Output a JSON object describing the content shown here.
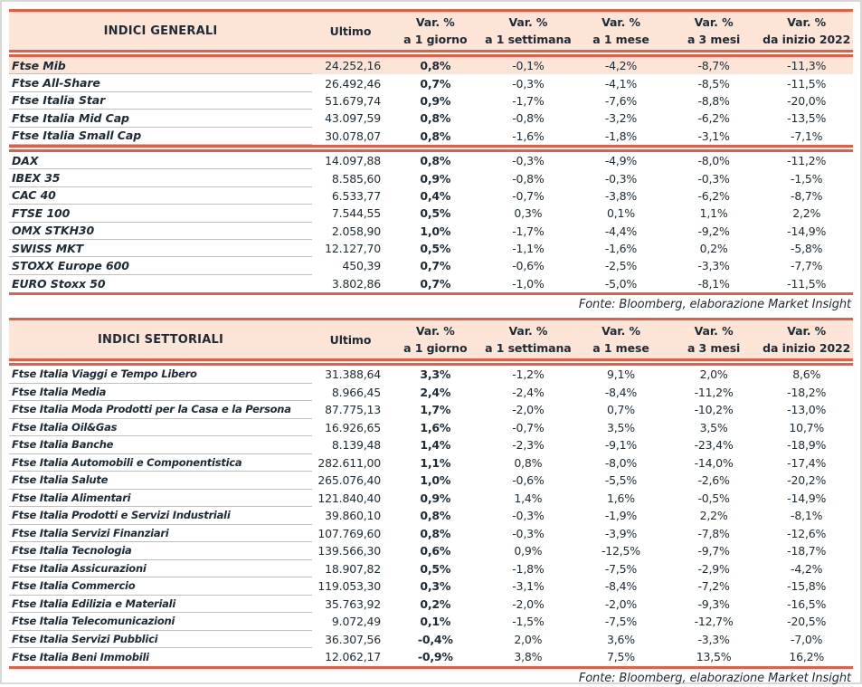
{
  "colors": {
    "accent_red": "#e65c44",
    "header_bg": "#fce4d6",
    "text": "#1c2b36"
  },
  "tables": [
    {
      "title": "INDICI GENERALI",
      "ultimo_header": "Ultimo",
      "var_cols": [
        {
          "line1": "Var. %",
          "line2": "a 1 giorno"
        },
        {
          "line1": "Var. %",
          "line2": "a 1 settimana"
        },
        {
          "line1": "Var. %",
          "line2": "a 1 mese"
        },
        {
          "line1": "Var. %",
          "line2": "a 3 mesi"
        },
        {
          "line1": "Var. %",
          "line2": "da inizio 2022"
        }
      ],
      "sections": [
        {
          "rows": [
            {
              "label": "Ftse Mib",
              "ultimo": "24.252,16",
              "vars": [
                "0,8%",
                "-0,1%",
                "-4,2%",
                "-8,7%",
                "-11,3%"
              ],
              "highlight": true
            },
            {
              "label": "Ftse All-Share",
              "ultimo": "26.492,46",
              "vars": [
                "0,7%",
                "-0,3%",
                "-4,1%",
                "-8,5%",
                "-11,5%"
              ]
            },
            {
              "label": "Ftse Italia Star",
              "ultimo": "51.679,74",
              "vars": [
                "0,9%",
                "-1,7%",
                "-7,6%",
                "-8,8%",
                "-20,0%"
              ]
            },
            {
              "label": "Ftse Italia Mid Cap",
              "ultimo": "43.097,59",
              "vars": [
                "0,8%",
                "-0,8%",
                "-3,2%",
                "-6,2%",
                "-13,5%"
              ]
            },
            {
              "label": "Ftse Italia Small Cap",
              "ultimo": "30.078,07",
              "vars": [
                "0,8%",
                "-1,6%",
                "-1,8%",
                "-3,1%",
                "-7,1%"
              ]
            }
          ]
        },
        {
          "rows": [
            {
              "label": "DAX",
              "ultimo": "14.097,88",
              "vars": [
                "0,8%",
                "-0,3%",
                "-4,9%",
                "-8,0%",
                "-11,2%"
              ]
            },
            {
              "label": "IBEX 35",
              "ultimo": "8.585,60",
              "vars": [
                "0,9%",
                "-0,8%",
                "-0,3%",
                "-0,3%",
                "-1,5%"
              ]
            },
            {
              "label": "CAC 40",
              "ultimo": "6.533,77",
              "vars": [
                "0,4%",
                "-0,7%",
                "-3,8%",
                "-6,2%",
                "-8,7%"
              ]
            },
            {
              "label": "FTSE 100",
              "ultimo": "7.544,55",
              "vars": [
                "0,5%",
                "0,3%",
                "0,1%",
                "1,1%",
                "2,2%"
              ]
            },
            {
              "label": "OMX STKH30",
              "ultimo": "2.058,90",
              "vars": [
                "1,0%",
                "-1,7%",
                "-4,4%",
                "-9,2%",
                "-14,9%"
              ]
            },
            {
              "label": "SWISS MKT",
              "ultimo": "12.127,70",
              "vars": [
                "0,5%",
                "-1,1%",
                "-1,6%",
                "0,2%",
                "-5,8%"
              ]
            },
            {
              "label": "STOXX Europe 600",
              "ultimo": "450,39",
              "vars": [
                "0,7%",
                "-0,6%",
                "-2,5%",
                "-3,3%",
                "-7,7%"
              ]
            },
            {
              "label": "EURO Stoxx 50",
              "ultimo": "3.802,86",
              "vars": [
                "0,7%",
                "-1,0%",
                "-5,0%",
                "-8,1%",
                "-11,5%"
              ]
            }
          ]
        }
      ],
      "fonte": "Fonte: Bloomberg, elaborazione Market Insight"
    },
    {
      "title": "INDICI SETTORIALI",
      "ultimo_header": "Ultimo",
      "var_cols": [
        {
          "line1": "Var. %",
          "line2": "a 1 giorno"
        },
        {
          "line1": "Var. %",
          "line2": "a 1 settimana"
        },
        {
          "line1": "Var. %",
          "line2": "a 1 mese"
        },
        {
          "line1": "Var. %",
          "line2": "a 3 mesi"
        },
        {
          "line1": "Var. %",
          "line2": "da inizio 2022"
        }
      ],
      "sections": [
        {
          "rows": [
            {
              "label": "Ftse Italia Viaggi e Tempo Libero",
              "ultimo": "31.388,64",
              "vars": [
                "3,3%",
                "-1,2%",
                "9,1%",
                "2,0%",
                "8,6%"
              ]
            },
            {
              "label": "Ftse Italia Media",
              "ultimo": "8.966,45",
              "vars": [
                "2,4%",
                "-2,4%",
                "-8,4%",
                "-11,2%",
                "-18,2%"
              ]
            },
            {
              "label": "Ftse Italia Moda Prodotti per la Casa e la Persona",
              "ultimo": "87.775,13",
              "vars": [
                "1,7%",
                "-2,0%",
                "0,7%",
                "-10,2%",
                "-13,0%"
              ]
            },
            {
              "label": "Ftse Italia Oil&Gas",
              "ultimo": "16.926,65",
              "vars": [
                "1,6%",
                "-0,7%",
                "3,5%",
                "3,5%",
                "10,7%"
              ]
            },
            {
              "label": "Ftse Italia Banche",
              "ultimo": "8.139,48",
              "vars": [
                "1,4%",
                "-2,3%",
                "-9,1%",
                "-23,4%",
                "-18,9%"
              ]
            },
            {
              "label": "Ftse Italia Automobili e Componentistica",
              "ultimo": "282.611,00",
              "vars": [
                "1,1%",
                "0,8%",
                "-8,0%",
                "-14,0%",
                "-17,4%"
              ]
            },
            {
              "label": "Ftse Italia Salute",
              "ultimo": "265.076,40",
              "vars": [
                "1,0%",
                "-0,6%",
                "-5,5%",
                "-2,6%",
                "-20,2%"
              ]
            },
            {
              "label": "Ftse Italia Alimentari",
              "ultimo": "121.840,40",
              "vars": [
                "0,9%",
                "1,4%",
                "1,6%",
                "-0,5%",
                "-14,9%"
              ]
            },
            {
              "label": "Ftse Italia Prodotti e Servizi Industriali",
              "ultimo": "39.860,10",
              "vars": [
                "0,8%",
                "-0,3%",
                "-1,9%",
                "2,2%",
                "-8,1%"
              ]
            },
            {
              "label": "Ftse Italia Servizi Finanziari",
              "ultimo": "107.769,60",
              "vars": [
                "0,8%",
                "-0,3%",
                "-3,9%",
                "-7,8%",
                "-12,6%"
              ]
            },
            {
              "label": "Ftse Italia Tecnologia",
              "ultimo": "139.566,30",
              "vars": [
                "0,6%",
                "0,9%",
                "-12,5%",
                "-9,7%",
                "-18,7%"
              ]
            },
            {
              "label": "Ftse Italia Assicurazioni",
              "ultimo": "18.907,82",
              "vars": [
                "0,5%",
                "-1,8%",
                "-7,5%",
                "-2,9%",
                "-4,2%"
              ]
            },
            {
              "label": "Ftse Italia Commercio",
              "ultimo": "119.053,30",
              "vars": [
                "0,3%",
                "-3,1%",
                "-8,4%",
                "-7,2%",
                "-15,8%"
              ]
            },
            {
              "label": "Ftse Italia Edilizia e Materiali",
              "ultimo": "35.763,92",
              "vars": [
                "0,2%",
                "-2,0%",
                "-2,0%",
                "-9,3%",
                "-16,5%"
              ]
            },
            {
              "label": "Ftse Italia Telecomunicazioni",
              "ultimo": "9.072,49",
              "vars": [
                "0,1%",
                "-1,5%",
                "-7,5%",
                "-12,7%",
                "-20,5%"
              ]
            },
            {
              "label": "Ftse Italia Servizi Pubblici",
              "ultimo": "36.307,56",
              "vars": [
                "-0,4%",
                "2,0%",
                "3,6%",
                "-3,3%",
                "-7,0%"
              ]
            },
            {
              "label": "Ftse Italia Beni Immobili",
              "ultimo": "12.062,17",
              "vars": [
                "-0,9%",
                "3,8%",
                "7,5%",
                "13,5%",
                "16,2%"
              ]
            }
          ]
        }
      ],
      "fonte": "Fonte: Bloomberg, elaborazione Market Insight"
    }
  ]
}
